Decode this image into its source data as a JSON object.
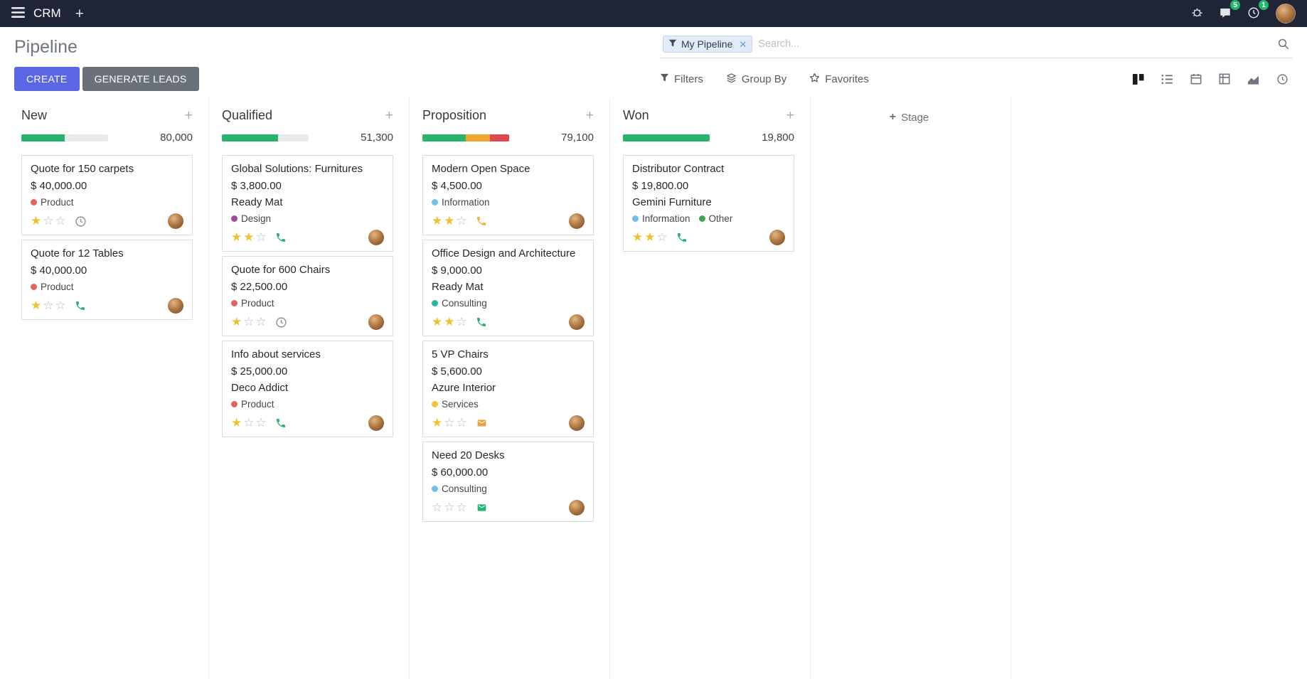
{
  "topbar": {
    "app_name": "CRM",
    "message_badge": "5",
    "activity_badge": "1"
  },
  "control_panel": {
    "title": "Pipeline",
    "create_label": "CREATE",
    "generate_leads_label": "GENERATE LEADS",
    "search_facet": "My Pipeline",
    "search_placeholder": "Search...",
    "filters_label": "Filters",
    "group_by_label": "Group By",
    "favorites_label": "Favorites"
  },
  "colors": {
    "accent": "#5a66e3",
    "secondary_button": "#6b7178",
    "success": "#26b56b",
    "warning": "#f0a72f",
    "danger": "#e2474e",
    "star": "#f0c12f",
    "badge": "#21b66e"
  },
  "kanban": {
    "add_stage_label": "Stage",
    "columns": [
      {
        "name": "New",
        "total": "80,000",
        "progress": [
          {
            "color": "#26b56b",
            "pct": 50
          }
        ],
        "cards": [
          {
            "title": "Quote for 150 carpets",
            "amount": "$ 40,000.00",
            "partner": null,
            "tags": [
              {
                "label": "Product",
                "color": "#e4615c"
              }
            ],
            "stars": 1,
            "activity": {
              "type": "clock",
              "color": "#8a8f98"
            }
          },
          {
            "title": "Quote for 12 Tables",
            "amount": "$ 40,000.00",
            "partner": null,
            "tags": [
              {
                "label": "Product",
                "color": "#e4615c"
              }
            ],
            "stars": 1,
            "activity": {
              "type": "phone",
              "color": "#26b56b"
            }
          }
        ]
      },
      {
        "name": "Qualified",
        "total": "51,300",
        "progress": [
          {
            "color": "#26b56b",
            "pct": 65
          }
        ],
        "cards": [
          {
            "title": "Global Solutions: Furnitures",
            "amount": "$ 3,800.00",
            "partner": "Ready Mat",
            "tags": [
              {
                "label": "Design",
                "color": "#a24a9e"
              }
            ],
            "stars": 2,
            "activity": {
              "type": "phone",
              "color": "#26b56b"
            }
          },
          {
            "title": "Quote for 600 Chairs",
            "amount": "$ 22,500.00",
            "partner": null,
            "tags": [
              {
                "label": "Product",
                "color": "#e4615c"
              }
            ],
            "stars": 1,
            "activity": {
              "type": "clock",
              "color": "#8a8f98"
            }
          },
          {
            "title": "Info about services",
            "amount": "$ 25,000.00",
            "partner": "Deco Addict",
            "tags": [
              {
                "label": "Product",
                "color": "#e4615c"
              }
            ],
            "stars": 1,
            "activity": {
              "type": "phone",
              "color": "#26b56b"
            }
          }
        ]
      },
      {
        "name": "Proposition",
        "total": "79,100",
        "progress": [
          {
            "color": "#26b56b",
            "pct": 50
          },
          {
            "color": "#f0a72f",
            "pct": 28
          },
          {
            "color": "#e2474e",
            "pct": 22
          }
        ],
        "cards": [
          {
            "title": "Modern Open Space",
            "amount": "$ 4,500.00",
            "partner": null,
            "tags": [
              {
                "label": "Information",
                "color": "#6ec2e8"
              }
            ],
            "stars": 2,
            "activity": {
              "type": "phone",
              "color": "#efb33c"
            }
          },
          {
            "title": "Office Design and Architecture",
            "amount": "$ 9,000.00",
            "partner": "Ready Mat",
            "tags": [
              {
                "label": "Consulting",
                "color": "#2cb5a0"
              }
            ],
            "stars": 2,
            "activity": {
              "type": "phone",
              "color": "#26b56b"
            }
          },
          {
            "title": "5 VP Chairs",
            "amount": "$ 5,600.00",
            "partner": "Azure Interior",
            "tags": [
              {
                "label": "Services",
                "color": "#edc43c"
              }
            ],
            "stars": 1,
            "activity": {
              "type": "envelope",
              "color": "#e8a33d"
            }
          },
          {
            "title": "Need 20 Desks",
            "amount": "$ 60,000.00",
            "partner": null,
            "tags": [
              {
                "label": "Consulting",
                "color": "#6ec2e8"
              }
            ],
            "stars": 0,
            "activity": {
              "type": "envelope",
              "color": "#21b573"
            }
          }
        ]
      },
      {
        "name": "Won",
        "total": "19,800",
        "progress": [
          {
            "color": "#26b56b",
            "pct": 100
          }
        ],
        "cards": [
          {
            "title": "Distributor Contract",
            "amount": "$ 19,800.00",
            "partner": "Gemini Furniture",
            "tags": [
              {
                "label": "Information",
                "color": "#6ec2e8"
              },
              {
                "label": "Other",
                "color": "#43a457"
              }
            ],
            "stars": 2,
            "activity": {
              "type": "phone",
              "color": "#26b56b"
            }
          }
        ]
      }
    ]
  }
}
